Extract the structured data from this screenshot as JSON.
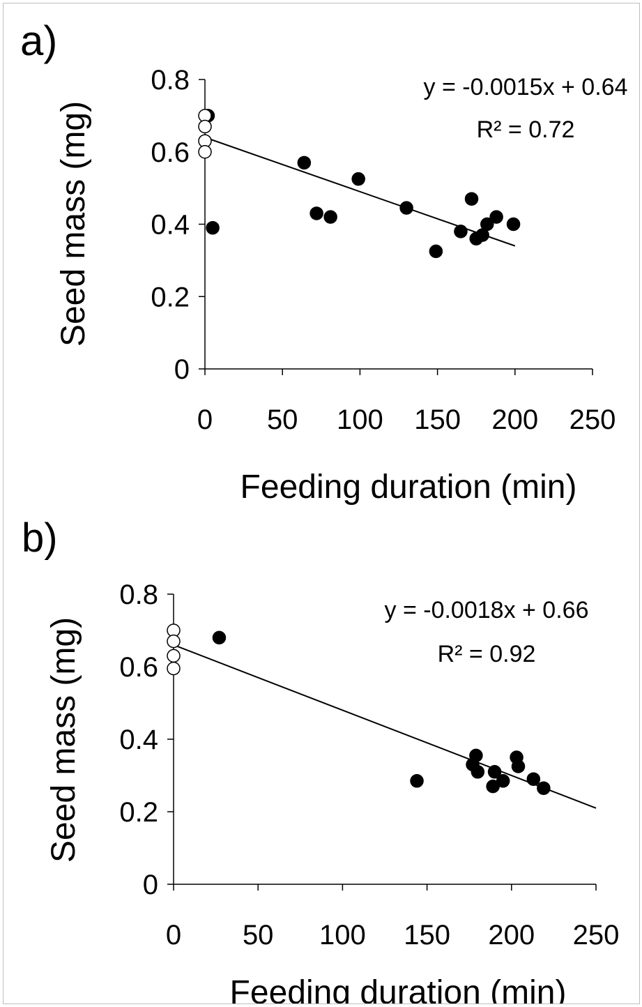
{
  "chart_data": [
    {
      "type": "scatter",
      "panel_label": "a)",
      "xlabel": "Feeding duration (min)",
      "ylabel": "Seed mass (mg)",
      "xlim": [
        0,
        250
      ],
      "ylim": [
        0,
        0.8
      ],
      "x_ticks": [
        "0",
        "50",
        "100",
        "150",
        "200",
        "250"
      ],
      "y_ticks": [
        "0",
        "0.2",
        "0.4",
        "0.6",
        "0.8"
      ],
      "series": [
        {
          "marker": "open-circle",
          "points": [
            [
              0,
              0.7
            ],
            [
              0,
              0.67
            ],
            [
              0,
              0.63
            ],
            [
              0,
              0.6
            ]
          ]
        },
        {
          "marker": "filled-circle",
          "points": [
            [
              2,
              0.7
            ],
            [
              5,
              0.39
            ],
            [
              64,
              0.57
            ],
            [
              72,
              0.43
            ],
            [
              81,
              0.42
            ],
            [
              99,
              0.525
            ],
            [
              130,
              0.445
            ],
            [
              149,
              0.325
            ],
            [
              165,
              0.38
            ],
            [
              172,
              0.47
            ],
            [
              175,
              0.36
            ],
            [
              179,
              0.37
            ],
            [
              182,
              0.4
            ],
            [
              188,
              0.42
            ],
            [
              199,
              0.4
            ]
          ]
        }
      ],
      "trendline": {
        "slope": -0.0015,
        "intercept": 0.64,
        "x_range": [
          0,
          200
        ]
      },
      "equation": "y = -0.0015x + 0.64",
      "r2": "R² = 0.72"
    },
    {
      "type": "scatter",
      "panel_label": "b)",
      "xlabel": "Feeding duration (min)",
      "ylabel": "Seed mass (mg)",
      "xlim": [
        0,
        250
      ],
      "ylim": [
        0,
        0.8
      ],
      "x_ticks": [
        "0",
        "50",
        "100",
        "150",
        "200",
        "250"
      ],
      "y_ticks": [
        "0",
        "0.2",
        "0.4",
        "0.6",
        "0.8"
      ],
      "series": [
        {
          "marker": "open-circle",
          "points": [
            [
              0,
              0.7
            ],
            [
              0,
              0.67
            ],
            [
              0,
              0.63
            ],
            [
              0,
              0.595
            ]
          ]
        },
        {
          "marker": "filled-circle",
          "points": [
            [
              27,
              0.68
            ],
            [
              144,
              0.285
            ],
            [
              177,
              0.33
            ],
            [
              179,
              0.355
            ],
            [
              180,
              0.31
            ],
            [
              189,
              0.27
            ],
            [
              190,
              0.31
            ],
            [
              195,
              0.285
            ],
            [
              203,
              0.35
            ],
            [
              204,
              0.325
            ],
            [
              213,
              0.29
            ],
            [
              219,
              0.265
            ]
          ]
        }
      ],
      "trendline": {
        "slope": -0.0018,
        "intercept": 0.66,
        "x_range": [
          0,
          250
        ]
      },
      "equation": "y = -0.0018x + 0.66",
      "r2": "R² = 0.92"
    }
  ]
}
